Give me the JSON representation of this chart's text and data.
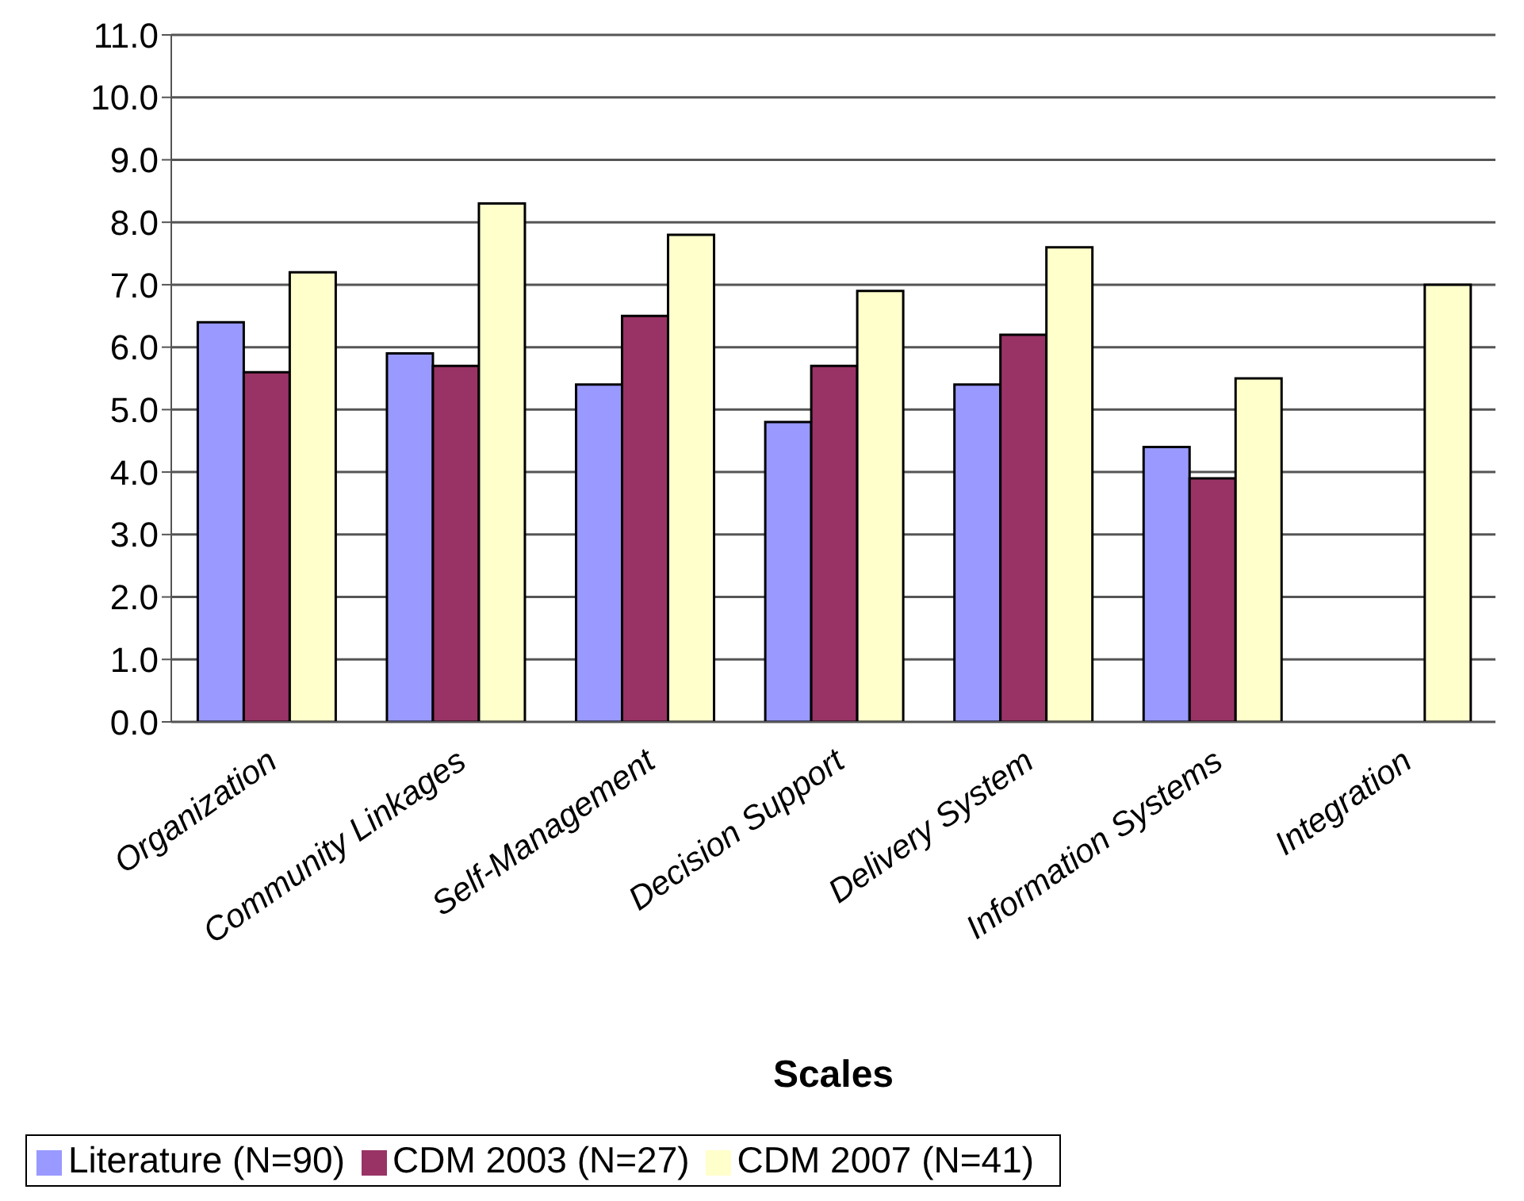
{
  "chart_data": {
    "type": "bar",
    "xlabel": "Scales",
    "categories": [
      "Organization",
      "Community Linkages",
      "Self-Management",
      "Decision Support",
      "Delivery System",
      "Information Systems",
      "Integration"
    ],
    "series": [
      {
        "name": "Literature (N=90)",
        "color": "#9999ff",
        "values": [
          6.4,
          5.9,
          5.4,
          4.8,
          5.4,
          4.4,
          null
        ]
      },
      {
        "name": "CDM 2003 (N=27)",
        "color": "#993366",
        "values": [
          5.6,
          5.7,
          6.5,
          5.7,
          6.2,
          3.9,
          null
        ]
      },
      {
        "name": "CDM 2007 (N=41)",
        "color": "#ffffcc",
        "values": [
          7.2,
          8.3,
          7.8,
          6.9,
          7.6,
          5.5,
          7.0
        ]
      }
    ],
    "ylim": [
      0,
      11
    ],
    "yticks": [
      {
        "value": 0,
        "label": "0.0"
      },
      {
        "value": 1,
        "label": "1.0"
      },
      {
        "value": 2,
        "label": "2.0"
      },
      {
        "value": 3,
        "label": "3.0"
      },
      {
        "value": 4,
        "label": "4.0"
      },
      {
        "value": 5,
        "label": "5.0"
      },
      {
        "value": 6,
        "label": "6.0"
      },
      {
        "value": 7,
        "label": "7.0"
      },
      {
        "value": 8,
        "label": "8.0"
      },
      {
        "value": 9,
        "label": "9.0"
      },
      {
        "value": 10,
        "label": "10.0"
      },
      {
        "value": 11,
        "label": "11.0"
      }
    ],
    "grid": "y",
    "legend": "bottom"
  }
}
